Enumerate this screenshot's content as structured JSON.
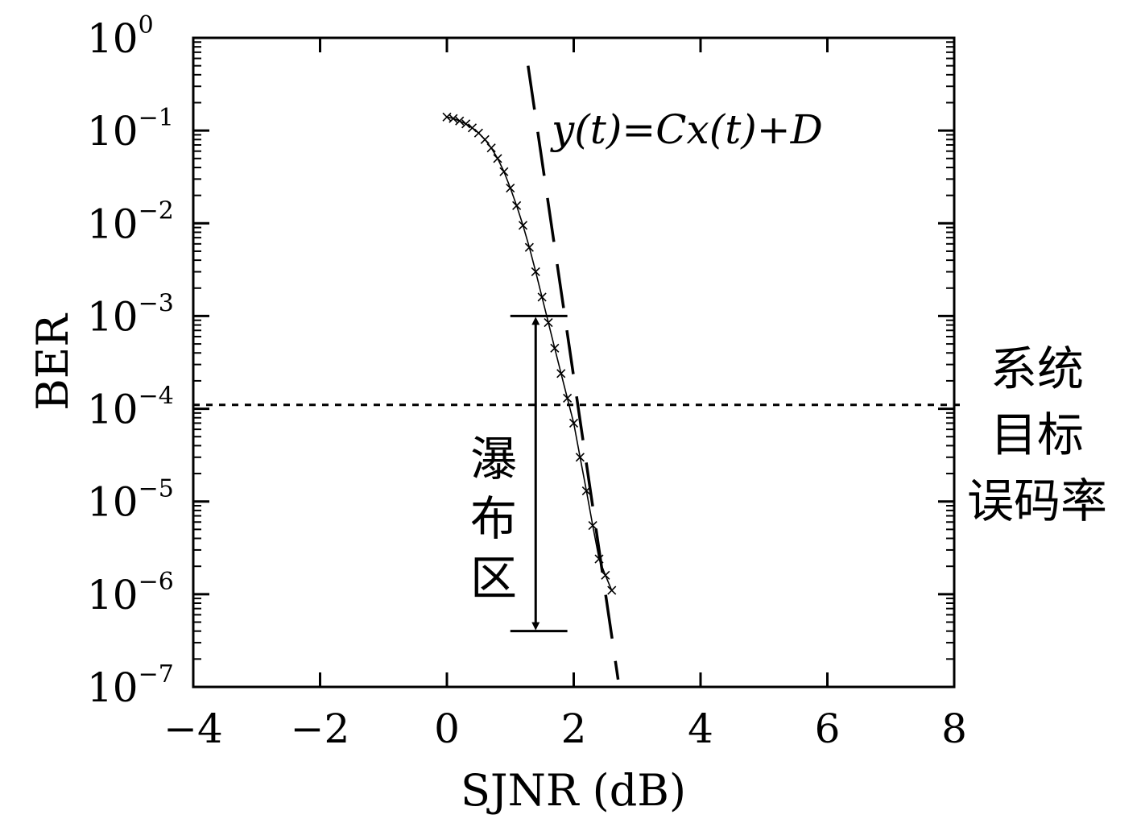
{
  "chart_data": {
    "type": "line",
    "title": "",
    "xlabel": "SJNR (dB)",
    "ylabel": "BER",
    "xlim": [
      -4,
      8
    ],
    "ylim": [
      1e-07,
      1
    ],
    "yscale": "log",
    "grid": false,
    "x_ticks": [
      "−4",
      "−2",
      "0",
      "2",
      "4",
      "6",
      "8"
    ],
    "x_tick_values": [
      -4,
      -2,
      0,
      2,
      4,
      6,
      8
    ],
    "y_ticks": [
      {
        "base": "10",
        "exp": "0"
      },
      {
        "base": "10",
        "exp": "−1"
      },
      {
        "base": "10",
        "exp": "−2"
      },
      {
        "base": "10",
        "exp": "−3"
      },
      {
        "base": "10",
        "exp": "−4"
      },
      {
        "base": "10",
        "exp": "−5"
      },
      {
        "base": "10",
        "exp": "−6"
      },
      {
        "base": "10",
        "exp": "−7"
      }
    ],
    "y_tick_exponents": [
      0,
      -1,
      -2,
      -3,
      -4,
      -5,
      -6,
      -7
    ],
    "series": [
      {
        "style": "solid-line-x-markers",
        "x": [
          0.0,
          0.1,
          0.2,
          0.3,
          0.4,
          0.5,
          0.6,
          0.7,
          0.8,
          0.9,
          1.0,
          1.1,
          1.2,
          1.3,
          1.4,
          1.5,
          1.6,
          1.7,
          1.8,
          1.9,
          2.0,
          2.1,
          2.2,
          2.3,
          2.4,
          2.5,
          2.6
        ],
        "y": [
          0.14,
          0.135,
          0.127,
          0.118,
          0.107,
          0.094,
          0.08,
          0.065,
          0.05,
          0.036,
          0.024,
          0.0155,
          0.0095,
          0.0055,
          0.003,
          0.0016,
          0.00085,
          0.00045,
          0.00024,
          0.00013,
          7e-05,
          3e-05,
          1.3e-05,
          5.5e-06,
          2.4e-06,
          1.6e-06,
          1.1e-06
        ]
      },
      {
        "style": "dashed-fit",
        "x": [
          1.28,
          2.7
        ],
        "y": [
          0.5,
          1.2e-07
        ]
      }
    ],
    "annotations": {
      "fit_label": "y(t)=Cx(t)+D",
      "target_line_value": 0.00011,
      "target_label": [
        "系统",
        "目标",
        "误码率"
      ],
      "waterfall_label": [
        "瀑",
        "布",
        "区"
      ],
      "waterfall_range_y": [
        0.001,
        4e-07
      ],
      "waterfall_arrow_x": 1.4,
      "waterfall_bar_x": [
        1.0,
        1.9
      ]
    }
  }
}
